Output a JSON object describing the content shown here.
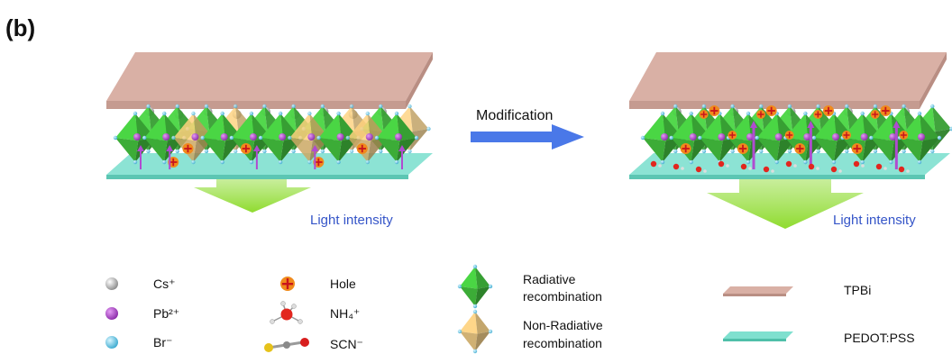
{
  "panel_label": "(b)",
  "arrow_label": "Modification",
  "left": {
    "caption": "Light intensity"
  },
  "right": {
    "caption": "Light intensity"
  },
  "legend": {
    "cs": "Cs⁺",
    "pb": "Pb²⁺",
    "br": "Br⁻",
    "hole": "Hole",
    "nh4": "NH₄⁺",
    "scn": "SCN⁻",
    "radiative": [
      "Radiative",
      "recombination"
    ],
    "nonradiative": [
      "Non-Radiative",
      "recombination"
    ],
    "tpbi": "TPBi",
    "pedot": "PEDOT:PSS"
  },
  "colors": {
    "tpbi": "#d9b0a5",
    "pedot": "#7fe0cf",
    "octa_green": "#3fb53a",
    "octa_tan": "#d7b26a",
    "arrow_blue": "#4a78e8",
    "caption_blue": "#3555c8",
    "hole": "#f08a1c",
    "pb": "#a93fc4",
    "br": "#5fc7e6",
    "cs": "#b9b9b9"
  }
}
